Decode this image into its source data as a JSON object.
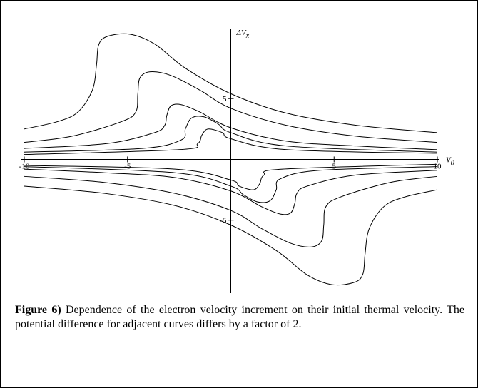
{
  "chart_data": {
    "type": "line",
    "x_label": {
      "main": "V",
      "sub": "0"
    },
    "y_label": {
      "main": "ΔV",
      "sub": "x"
    },
    "xlim": [
      -10,
      10
    ],
    "ylim": [
      -11,
      10.7
    ],
    "xticks": [
      -10,
      -5,
      5,
      10
    ],
    "yticks": [
      -5,
      5
    ],
    "color": "#000000",
    "series": [
      {
        "x": [
          -10,
          -8.4,
          -7.4,
          -6.7,
          -6.5,
          -6.4,
          -6.0,
          -4.9,
          -3.7,
          -2.2,
          0,
          2.7,
          6.1,
          10
        ],
        "values": [
          2.5,
          3.1,
          3.9,
          5.7,
          7.8,
          9.4,
          10.1,
          10.3,
          9.5,
          7.5,
          5.4,
          3.8,
          2.8,
          2.2
        ]
      },
      {
        "x": [
          -10,
          -7.7,
          -5.3,
          -4.6,
          -4.5,
          -4.4,
          -3.9,
          -2.9,
          -1.5,
          0,
          2.7,
          6.1,
          10
        ],
        "values": [
          1.4,
          1.9,
          3.1,
          3.9,
          5.4,
          6.7,
          7.2,
          6.9,
          5.7,
          4.2,
          2.8,
          1.9,
          1.4
        ]
      },
      {
        "x": [
          -10,
          -6,
          -3.7,
          -3.2,
          -3.1,
          -2.9,
          -2.4,
          -1.5,
          0,
          2.7,
          6.1,
          10
        ],
        "values": [
          0.9,
          1.3,
          2.2,
          2.8,
          3.6,
          4.4,
          4.5,
          3.9,
          2.6,
          1.5,
          1.1,
          0.8
        ]
      },
      {
        "x": [
          -10,
          -4.3,
          -2.4,
          -2.2,
          -1.9,
          -1.3,
          -0.6,
          0,
          2.7,
          10
        ],
        "values": [
          0.6,
          0.9,
          1.6,
          2.5,
          3.4,
          3.5,
          2.9,
          2.2,
          1.1,
          0.6
        ]
      },
      {
        "x": [
          -10,
          -2.5,
          -1.6,
          -1.4,
          -1.1,
          -0.4,
          0,
          2.7,
          10
        ],
        "values": [
          0.4,
          0.8,
          1.3,
          2.0,
          2.5,
          2.2,
          1.7,
          0.8,
          0.5
        ]
      },
      {
        "x": [
          -10,
          -6.1,
          -2.7,
          0,
          2.2,
          3.7,
          4.9,
          6.0,
          6.4,
          6.5,
          6.7,
          7.4,
          8.4,
          10
        ],
        "values": [
          -2.2,
          -2.8,
          -3.8,
          -5.4,
          -7.5,
          -9.5,
          -10.3,
          -10.1,
          -9.4,
          -7.8,
          -5.7,
          -3.9,
          -3.1,
          -2.5
        ]
      },
      {
        "x": [
          -10,
          -6.1,
          -2.7,
          0,
          1.5,
          2.9,
          3.9,
          4.4,
          4.5,
          4.6,
          5.3,
          7.7,
          10
        ],
        "values": [
          -1.4,
          -1.9,
          -2.8,
          -4.2,
          -5.7,
          -6.9,
          -7.2,
          -6.7,
          -5.4,
          -3.9,
          -3.1,
          -1.9,
          -1.4
        ]
      },
      {
        "x": [
          -10,
          -6.1,
          -2.7,
          0,
          1.5,
          2.4,
          2.9,
          3.1,
          3.2,
          3.7,
          6,
          10
        ],
        "values": [
          -0.8,
          -1.1,
          -1.5,
          -2.6,
          -3.9,
          -4.5,
          -4.4,
          -3.6,
          -2.8,
          -2.2,
          -1.3,
          -0.9
        ]
      },
      {
        "x": [
          -10,
          -2.7,
          0,
          0.6,
          1.3,
          1.9,
          2.2,
          2.4,
          4.3,
          10
        ],
        "values": [
          -0.6,
          -1.1,
          -2.2,
          -2.9,
          -3.5,
          -3.4,
          -2.5,
          -1.6,
          -0.9,
          -0.6
        ]
      },
      {
        "x": [
          -10,
          -2.7,
          0,
          0.4,
          1.1,
          1.4,
          1.6,
          2.5,
          10
        ],
        "values": [
          -0.5,
          -0.8,
          -1.7,
          -2.2,
          -2.5,
          -2.0,
          -1.3,
          -0.8,
          -0.4
        ]
      }
    ]
  },
  "caption": {
    "label": "Figure 6)",
    "text": " Dependence of the electron velocity increment on their initial thermal velocity. The potential difference for adjacent curves differs by a factor of 2."
  }
}
